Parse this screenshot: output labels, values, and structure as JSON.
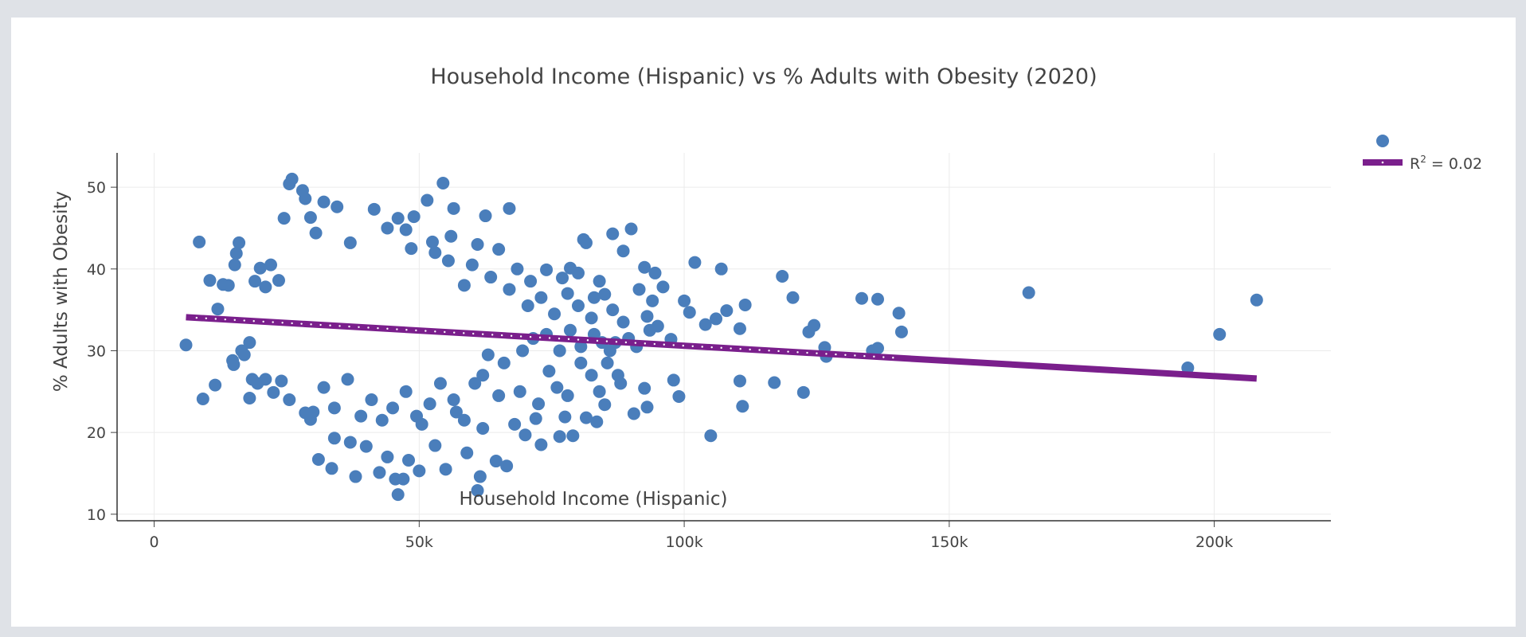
{
  "chart_data": {
    "type": "scatter",
    "title": "Household Income (Hispanic) vs % Adults with Obesity (2020)",
    "xlabel": "Household Income (Hispanic)",
    "ylabel": "% Adults with Obesity",
    "xlim": [
      -7000,
      222000
    ],
    "ylim": [
      9.2,
      54.2
    ],
    "xticks": [
      {
        "v": 0,
        "label": "0"
      },
      {
        "v": 50000,
        "label": "50k"
      },
      {
        "v": 100000,
        "label": "100k"
      },
      {
        "v": 150000,
        "label": "150k"
      },
      {
        "v": 200000,
        "label": "200k"
      }
    ],
    "yticks": [
      {
        "v": 10,
        "label": "10"
      },
      {
        "v": 20,
        "label": "20"
      },
      {
        "v": 30,
        "label": "30"
      },
      {
        "v": 40,
        "label": "40"
      },
      {
        "v": 50,
        "label": "50"
      }
    ],
    "grid": true,
    "legend": {
      "placement": "top-right",
      "entries": [
        {
          "name": "",
          "kind": "marker"
        },
        {
          "name": "R² = 0.02",
          "kind": "line",
          "display": {
            "base": "R",
            "sup": "2",
            "rest": " = 0.02"
          }
        }
      ]
    },
    "colors": {
      "points": "#4a7ebb",
      "trend": "#7a1f8c",
      "trend_dots": "#ffffff"
    },
    "series": [
      {
        "name": "",
        "kind": "scatter",
        "points": [
          [
            6000,
            30.7
          ],
          [
            8500,
            43.3
          ],
          [
            9200,
            24.1
          ],
          [
            10500,
            38.6
          ],
          [
            11500,
            25.8
          ],
          [
            12000,
            35.1
          ],
          [
            13000,
            38.1
          ],
          [
            15000,
            28.3
          ],
          [
            15500,
            41.9
          ],
          [
            16000,
            43.2
          ],
          [
            16500,
            30.0
          ],
          [
            18000,
            24.2
          ],
          [
            14800,
            28.8
          ],
          [
            15200,
            40.5
          ],
          [
            14000,
            38.0
          ],
          [
            19000,
            38.5
          ],
          [
            20000,
            40.1
          ],
          [
            21000,
            37.8
          ],
          [
            22000,
            40.5
          ],
          [
            23500,
            38.6
          ],
          [
            24500,
            46.2
          ],
          [
            25500,
            50.4
          ],
          [
            26000,
            51.0
          ],
          [
            28000,
            49.6
          ],
          [
            28500,
            48.6
          ],
          [
            29500,
            46.3
          ],
          [
            30500,
            44.4
          ],
          [
            32000,
            48.2
          ],
          [
            34500,
            47.6
          ],
          [
            37000,
            43.2
          ],
          [
            41500,
            47.3
          ],
          [
            44000,
            45.0
          ],
          [
            46000,
            46.2
          ],
          [
            47500,
            44.8
          ],
          [
            49000,
            46.4
          ],
          [
            51500,
            48.4
          ],
          [
            52500,
            43.3
          ],
          [
            54500,
            50.5
          ],
          [
            56500,
            47.4
          ],
          [
            56000,
            44.0
          ],
          [
            61000,
            43.0
          ],
          [
            62500,
            46.5
          ],
          [
            65000,
            42.4
          ],
          [
            67000,
            47.4
          ],
          [
            53000,
            42.0
          ],
          [
            48500,
            42.5
          ],
          [
            74000,
            39.9
          ],
          [
            77000,
            38.9
          ],
          [
            78500,
            40.1
          ],
          [
            80000,
            39.5
          ],
          [
            81000,
            43.6
          ],
          [
            81500,
            43.2
          ],
          [
            83000,
            36.5
          ],
          [
            85000,
            36.9
          ],
          [
            86500,
            44.3
          ],
          [
            88500,
            42.2
          ],
          [
            90000,
            44.9
          ],
          [
            91500,
            37.5
          ],
          [
            92500,
            40.2
          ],
          [
            94000,
            36.1
          ],
          [
            94500,
            39.5
          ],
          [
            96000,
            37.8
          ],
          [
            93000,
            34.2
          ],
          [
            95000,
            33.0
          ],
          [
            97500,
            31.4
          ],
          [
            98000,
            26.4
          ],
          [
            99000,
            24.4
          ],
          [
            100000,
            36.1
          ],
          [
            101000,
            34.7
          ],
          [
            102000,
            40.8
          ],
          [
            104000,
            33.2
          ],
          [
            105000,
            19.6
          ],
          [
            106000,
            33.9
          ],
          [
            107000,
            40.0
          ],
          [
            108000,
            34.9
          ],
          [
            110500,
            32.7
          ],
          [
            110500,
            26.3
          ],
          [
            111000,
            23.2
          ],
          [
            111500,
            35.6
          ],
          [
            117000,
            26.1
          ],
          [
            118500,
            39.1
          ],
          [
            120500,
            36.5
          ],
          [
            122500,
            24.9
          ],
          [
            123500,
            32.3
          ],
          [
            124500,
            33.1
          ],
          [
            126500,
            30.4
          ],
          [
            126800,
            29.3
          ],
          [
            133500,
            36.4
          ],
          [
            135500,
            30.0
          ],
          [
            136500,
            30.3
          ],
          [
            136500,
            36.3
          ],
          [
            140500,
            34.6
          ],
          [
            141000,
            32.3
          ],
          [
            165000,
            37.1
          ],
          [
            195000,
            27.9
          ],
          [
            201000,
            32.0
          ],
          [
            208000,
            36.2
          ],
          [
            90500,
            22.3
          ],
          [
            93000,
            23.1
          ],
          [
            92500,
            25.4
          ],
          [
            87500,
            27.0
          ],
          [
            88000,
            26.0
          ],
          [
            84000,
            25.0
          ],
          [
            85000,
            23.4
          ],
          [
            81500,
            21.8
          ],
          [
            83500,
            21.3
          ],
          [
            79000,
            19.6
          ],
          [
            76500,
            19.5
          ],
          [
            77500,
            21.9
          ],
          [
            73000,
            18.5
          ],
          [
            72000,
            21.7
          ],
          [
            70000,
            19.7
          ],
          [
            68000,
            21.0
          ],
          [
            66500,
            15.9
          ],
          [
            64500,
            16.5
          ],
          [
            61500,
            14.6
          ],
          [
            61000,
            12.9
          ],
          [
            55000,
            15.5
          ],
          [
            53000,
            18.4
          ],
          [
            50000,
            15.3
          ],
          [
            48000,
            16.6
          ],
          [
            45500,
            14.3
          ],
          [
            44000,
            17.0
          ],
          [
            42500,
            15.1
          ],
          [
            40000,
            18.3
          ],
          [
            38000,
            14.6
          ],
          [
            37000,
            18.8
          ],
          [
            34000,
            19.3
          ],
          [
            33500,
            15.6
          ],
          [
            31000,
            16.7
          ],
          [
            46000,
            12.4
          ],
          [
            47000,
            14.3
          ],
          [
            29500,
            21.6
          ],
          [
            28500,
            22.4
          ],
          [
            25500,
            24.0
          ],
          [
            24000,
            26.3
          ],
          [
            22500,
            24.9
          ],
          [
            21000,
            26.5
          ],
          [
            19500,
            26.0
          ],
          [
            18500,
            26.5
          ],
          [
            17000,
            29.5
          ],
          [
            18000,
            31.0
          ],
          [
            59000,
            17.5
          ],
          [
            62000,
            20.5
          ],
          [
            57000,
            22.5
          ],
          [
            50500,
            21.0
          ],
          [
            69000,
            25.0
          ],
          [
            72500,
            23.5
          ],
          [
            74500,
            27.5
          ],
          [
            76000,
            25.5
          ],
          [
            78000,
            24.5
          ],
          [
            80500,
            28.5
          ],
          [
            82500,
            27.0
          ],
          [
            84500,
            31.0
          ],
          [
            86000,
            30.0
          ],
          [
            88500,
            33.5
          ],
          [
            89500,
            31.5
          ],
          [
            91000,
            30.5
          ],
          [
            93500,
            32.5
          ],
          [
            70500,
            35.5
          ],
          [
            73000,
            36.5
          ],
          [
            75500,
            34.5
          ],
          [
            78000,
            37.0
          ],
          [
            80000,
            35.5
          ],
          [
            82500,
            34.0
          ],
          [
            84000,
            38.5
          ],
          [
            86500,
            35.0
          ],
          [
            71000,
            38.5
          ],
          [
            68500,
            40.0
          ],
          [
            67000,
            37.5
          ],
          [
            63500,
            39.0
          ],
          [
            60000,
            40.5
          ],
          [
            58500,
            38.0
          ],
          [
            55500,
            41.0
          ],
          [
            62000,
            27.0
          ],
          [
            65000,
            24.5
          ],
          [
            60500,
            26.0
          ],
          [
            63000,
            29.5
          ],
          [
            66000,
            28.5
          ],
          [
            69500,
            30.0
          ],
          [
            71500,
            31.5
          ],
          [
            74000,
            32.0
          ],
          [
            76500,
            30.0
          ],
          [
            78500,
            32.5
          ],
          [
            80500,
            30.5
          ],
          [
            83000,
            32.0
          ],
          [
            85500,
            28.5
          ],
          [
            87000,
            31.0
          ],
          [
            30000,
            22.5
          ],
          [
            32000,
            25.5
          ],
          [
            34000,
            23.0
          ],
          [
            36500,
            26.5
          ],
          [
            39000,
            22.0
          ],
          [
            41000,
            24.0
          ],
          [
            43000,
            21.5
          ],
          [
            45000,
            23.0
          ],
          [
            47500,
            25.0
          ],
          [
            49500,
            22.0
          ],
          [
            52000,
            23.5
          ],
          [
            54000,
            26.0
          ],
          [
            56500,
            24.0
          ],
          [
            58500,
            21.5
          ]
        ]
      },
      {
        "name": "R² = 0.02",
        "kind": "line",
        "points": [
          [
            6000,
            34.1
          ],
          [
            208000,
            26.6
          ]
        ]
      }
    ]
  }
}
